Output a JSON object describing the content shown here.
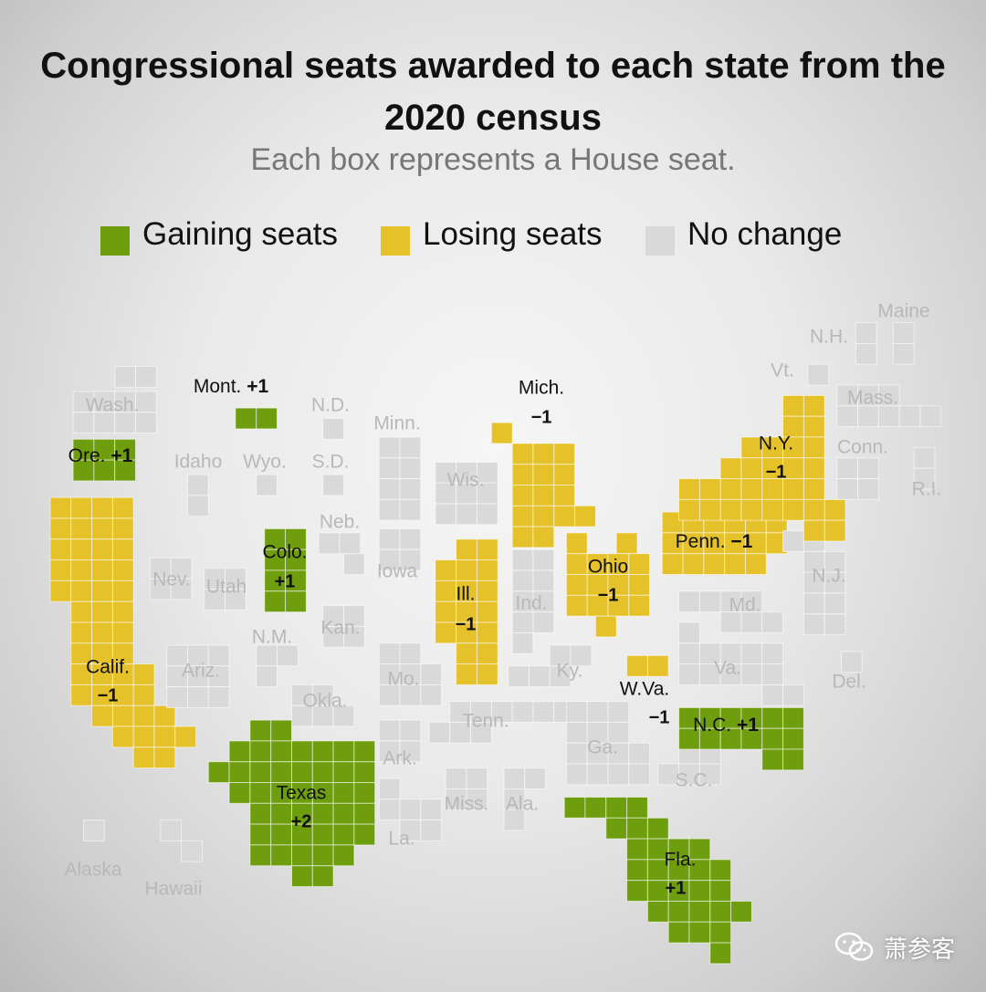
{
  "title": "Congressional seats awarded to each state from the 2020 census",
  "subtitle": "Each box represents a House seat.",
  "legend": [
    {
      "label": "Gaining seats",
      "status": "gain",
      "color": "#6e9e0e"
    },
    {
      "label": "Losing seats",
      "status": "lose",
      "color": "#e5c12a"
    },
    {
      "label": "No change",
      "status": "none",
      "color": "#d9d9d9"
    }
  ],
  "colors": {
    "gain": "#6e9e0e",
    "lose": "#e5c12a",
    "none": "#d9d9d9",
    "label_dim": "#b8b8b8",
    "label_dark": "#111111"
  },
  "watermark": "萧参客",
  "map_data": {
    "type": "tile-cartogram",
    "states": [
      {
        "name": "Wash.",
        "status": "none",
        "change": "",
        "seats": 10
      },
      {
        "name": "Ore.",
        "status": "gain",
        "change": "+1",
        "seats": 6
      },
      {
        "name": "Calif.",
        "status": "lose",
        "change": "−1",
        "seats": 52
      },
      {
        "name": "Mont.",
        "status": "gain",
        "change": "+1",
        "seats": 2
      },
      {
        "name": "Idaho",
        "status": "none",
        "change": "",
        "seats": 2
      },
      {
        "name": "Wyo.",
        "status": "none",
        "change": "",
        "seats": 1
      },
      {
        "name": "Nev.",
        "status": "none",
        "change": "",
        "seats": 4
      },
      {
        "name": "Utah",
        "status": "none",
        "change": "",
        "seats": 4
      },
      {
        "name": "Colo.",
        "status": "gain",
        "change": "+1",
        "seats": 8
      },
      {
        "name": "Ariz.",
        "status": "none",
        "change": "",
        "seats": 9
      },
      {
        "name": "N.M.",
        "status": "none",
        "change": "",
        "seats": 3
      },
      {
        "name": "N.D.",
        "status": "none",
        "change": "",
        "seats": 1
      },
      {
        "name": "S.D.",
        "status": "none",
        "change": "",
        "seats": 1
      },
      {
        "name": "Neb.",
        "status": "none",
        "change": "",
        "seats": 3
      },
      {
        "name": "Kan.",
        "status": "none",
        "change": "",
        "seats": 4
      },
      {
        "name": "Okla.",
        "status": "none",
        "change": "",
        "seats": 5
      },
      {
        "name": "Texas",
        "status": "gain",
        "change": "+2",
        "seats": 38
      },
      {
        "name": "Minn.",
        "status": "none",
        "change": "",
        "seats": 8
      },
      {
        "name": "Iowa",
        "status": "none",
        "change": "",
        "seats": 4
      },
      {
        "name": "Mo.",
        "status": "none",
        "change": "",
        "seats": 8
      },
      {
        "name": "Ark.",
        "status": "none",
        "change": "",
        "seats": 4
      },
      {
        "name": "La.",
        "status": "none",
        "change": "",
        "seats": 6
      },
      {
        "name": "Wis.",
        "status": "none",
        "change": "",
        "seats": 8
      },
      {
        "name": "Ill.",
        "status": "lose",
        "change": "−1",
        "seats": 17
      },
      {
        "name": "Mich.",
        "status": "lose",
        "change": "−1",
        "seats": 13
      },
      {
        "name": "Ind.",
        "status": "none",
        "change": "",
        "seats": 9
      },
      {
        "name": "Ohio",
        "status": "lose",
        "change": "−1",
        "seats": 15
      },
      {
        "name": "Ky.",
        "status": "none",
        "change": "",
        "seats": 6
      },
      {
        "name": "Tenn.",
        "status": "none",
        "change": "",
        "seats": 9
      },
      {
        "name": "Miss.",
        "status": "none",
        "change": "",
        "seats": 4
      },
      {
        "name": "Ala.",
        "status": "none",
        "change": "",
        "seats": 7
      },
      {
        "name": "Ga.",
        "status": "none",
        "change": "",
        "seats": 14
      },
      {
        "name": "Fla.",
        "status": "gain",
        "change": "+1",
        "seats": 28
      },
      {
        "name": "S.C.",
        "status": "none",
        "change": "",
        "seats": 7
      },
      {
        "name": "N.C.",
        "status": "gain",
        "change": "+1",
        "seats": 14
      },
      {
        "name": "Va.",
        "status": "none",
        "change": "",
        "seats": 11
      },
      {
        "name": "W.Va.",
        "status": "lose",
        "change": "−1",
        "seats": 2
      },
      {
        "name": "Md.",
        "status": "none",
        "change": "",
        "seats": 8
      },
      {
        "name": "Del.",
        "status": "none",
        "change": "",
        "seats": 1
      },
      {
        "name": "Penn.",
        "status": "lose",
        "change": "−1",
        "seats": 17
      },
      {
        "name": "N.J.",
        "status": "none",
        "change": "",
        "seats": 12
      },
      {
        "name": "N.Y.",
        "status": "lose",
        "change": "−1",
        "seats": 26
      },
      {
        "name": "Conn.",
        "status": "none",
        "change": "",
        "seats": 5
      },
      {
        "name": "R.I.",
        "status": "none",
        "change": "",
        "seats": 2
      },
      {
        "name": "Mass.",
        "status": "none",
        "change": "",
        "seats": 9
      },
      {
        "name": "Vt.",
        "status": "none",
        "change": "",
        "seats": 1
      },
      {
        "name": "N.H.",
        "status": "none",
        "change": "",
        "seats": 2
      },
      {
        "name": "Maine",
        "status": "none",
        "change": "",
        "seats": 2
      },
      {
        "name": "Alaska",
        "status": "none",
        "change": "",
        "seats": 1
      },
      {
        "name": "Hawaii",
        "status": "none",
        "change": "",
        "seats": 2
      }
    ]
  }
}
